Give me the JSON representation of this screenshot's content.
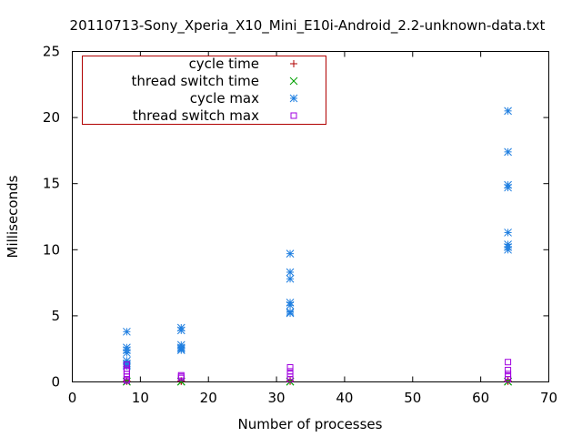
{
  "chart_data": {
    "type": "scatter",
    "title": "20110713-Sony_Xperia_X10_Mini_E10i-Android_2.2-unknown-data.txt",
    "xlabel": "Number of processes",
    "ylabel": "Milliseconds",
    "xlim": [
      0,
      70
    ],
    "ylim": [
      0,
      25
    ],
    "xticks": [
      0,
      10,
      20,
      30,
      40,
      50,
      60,
      70
    ],
    "yticks": [
      0,
      5,
      10,
      15,
      20,
      25
    ],
    "grid": false,
    "legend_position": "top-left",
    "series": [
      {
        "name": "cycle time",
        "marker": "plus",
        "color": "#b00000",
        "points": [
          [
            8,
            0.05
          ],
          [
            8,
            0.08
          ],
          [
            16,
            0.05
          ],
          [
            16,
            0.08
          ],
          [
            32,
            0.05
          ],
          [
            32,
            0.08
          ],
          [
            64,
            0.05
          ],
          [
            64,
            0.08
          ]
        ]
      },
      {
        "name": "thread switch time",
        "marker": "cross",
        "color": "#00a000",
        "points": [
          [
            8,
            0.02
          ],
          [
            8,
            0.04
          ],
          [
            16,
            0.02
          ],
          [
            16,
            0.04
          ],
          [
            32,
            0.02
          ],
          [
            32,
            0.04
          ],
          [
            64,
            0.02
          ],
          [
            64,
            0.04
          ]
        ]
      },
      {
        "name": "cycle max",
        "marker": "star",
        "color": "#1e7ee0",
        "points": [
          [
            8,
            3.8
          ],
          [
            8,
            2.6
          ],
          [
            8,
            2.4
          ],
          [
            8,
            2.2
          ],
          [
            8,
            1.6
          ],
          [
            8,
            1.4
          ],
          [
            8,
            1.3
          ],
          [
            8,
            1.2
          ],
          [
            16,
            4.1
          ],
          [
            16,
            3.9
          ],
          [
            16,
            2.8
          ],
          [
            16,
            2.6
          ],
          [
            16,
            2.5
          ],
          [
            16,
            2.4
          ],
          [
            32,
            9.7
          ],
          [
            32,
            8.3
          ],
          [
            32,
            7.8
          ],
          [
            32,
            6.0
          ],
          [
            32,
            5.8
          ],
          [
            32,
            5.3
          ],
          [
            32,
            5.2
          ],
          [
            64,
            20.5
          ],
          [
            64,
            17.4
          ],
          [
            64,
            14.9
          ],
          [
            64,
            14.7
          ],
          [
            64,
            11.3
          ],
          [
            64,
            10.4
          ],
          [
            64,
            10.2
          ],
          [
            64,
            10.0
          ]
        ]
      },
      {
        "name": "thread switch max",
        "marker": "square",
        "color": "#a000e0",
        "points": [
          [
            8,
            1.3
          ],
          [
            8,
            1.0
          ],
          [
            8,
            0.8
          ],
          [
            8,
            0.6
          ],
          [
            8,
            0.4
          ],
          [
            8,
            0.2
          ],
          [
            8,
            0.1
          ],
          [
            16,
            0.5
          ],
          [
            16,
            0.4
          ],
          [
            16,
            0.3
          ],
          [
            32,
            1.1
          ],
          [
            32,
            0.8
          ],
          [
            32,
            0.6
          ],
          [
            32,
            0.4
          ],
          [
            32,
            0.2
          ],
          [
            64,
            1.5
          ],
          [
            64,
            0.9
          ],
          [
            64,
            0.6
          ],
          [
            64,
            0.4
          ],
          [
            64,
            0.2
          ]
        ]
      }
    ]
  }
}
